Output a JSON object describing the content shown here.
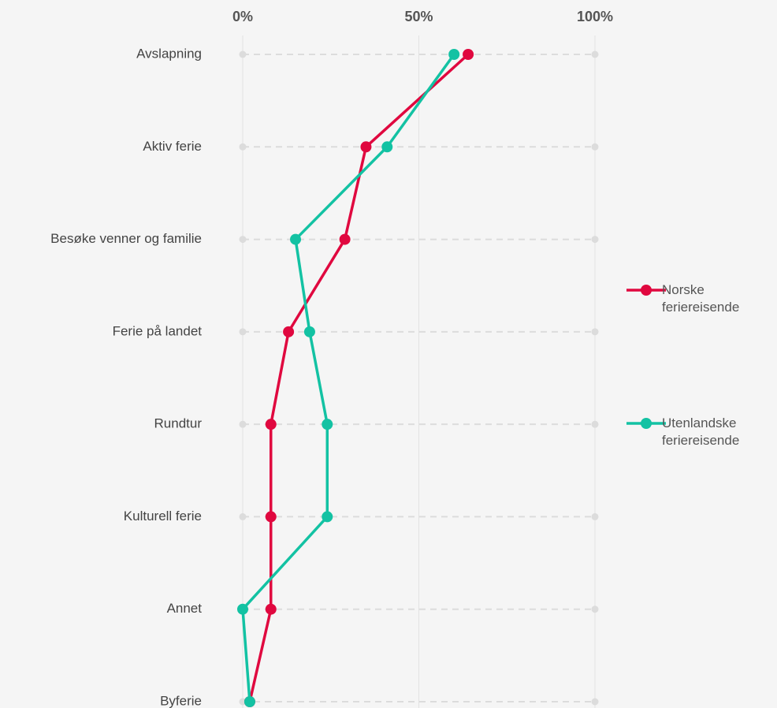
{
  "chart_data": {
    "type": "line",
    "orientation": "horizontal",
    "categories": [
      "Avslapning",
      "Aktiv ferie",
      "Besøke venner og familie",
      "Ferie på landet",
      "Rundtur",
      "Kulturell ferie",
      "Annet",
      "Byferie"
    ],
    "series": [
      {
        "name": "Norske feriereisende",
        "color": "#e0083f",
        "values": [
          64,
          35,
          29,
          13,
          8,
          8,
          8,
          2
        ]
      },
      {
        "name": "Utenlandske feriereisende",
        "color": "#13c2a3",
        "values": [
          60,
          41,
          15,
          19,
          24,
          24,
          0,
          2
        ]
      }
    ],
    "xlim": [
      0,
      100
    ],
    "xticks": [
      {
        "value": 0,
        "label": "0%"
      },
      {
        "value": 50,
        "label": "50%"
      },
      {
        "value": 100,
        "label": "100%"
      }
    ],
    "grid": true,
    "legend": "right"
  }
}
